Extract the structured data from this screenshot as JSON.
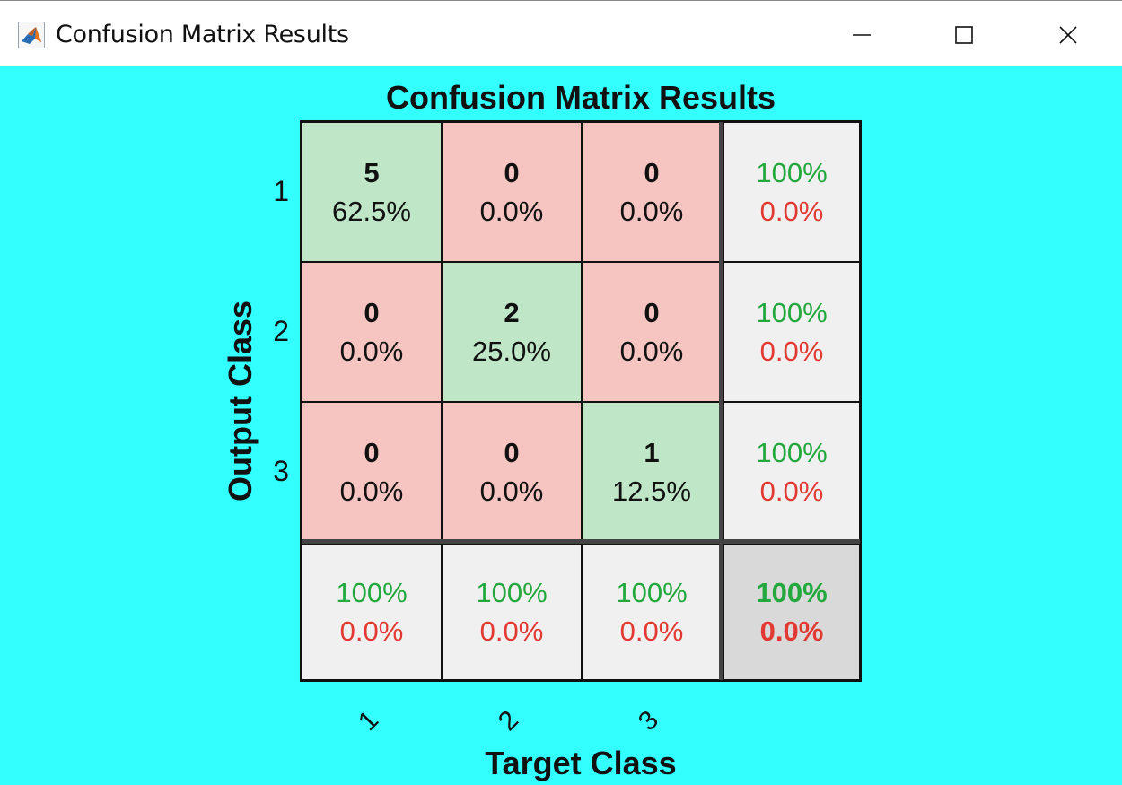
{
  "window": {
    "title": "Confusion Matrix Results",
    "icon": "matlab-icon",
    "controls": [
      "minimize-icon",
      "maximize-icon",
      "close-icon"
    ]
  },
  "figure": {
    "background": "#33ffff",
    "title": "Confusion Matrix Results",
    "ylabel": "Output Class",
    "xlabel": "Target Class",
    "yticks": [
      "1",
      "2",
      "3"
    ],
    "xticks": [
      "1",
      "2",
      "3"
    ]
  },
  "colors": {
    "correct_cell": "#bfe6c7",
    "incorrect_cell": "#f7c5c1",
    "summary_cell": "#f0f0f0",
    "total_cell": "#d9d9d9",
    "good_text": "#22a83c",
    "bad_text": "#e23a32"
  },
  "matrix": {
    "r0c0": {
      "count": "5",
      "pct": "62.5%"
    },
    "r0c1": {
      "count": "0",
      "pct": "0.0%"
    },
    "r0c2": {
      "count": "0",
      "pct": "0.0%"
    },
    "r1c0": {
      "count": "0",
      "pct": "0.0%"
    },
    "r1c1": {
      "count": "2",
      "pct": "25.0%"
    },
    "r1c2": {
      "count": "0",
      "pct": "0.0%"
    },
    "r2c0": {
      "count": "0",
      "pct": "0.0%"
    },
    "r2c1": {
      "count": "0",
      "pct": "0.0%"
    },
    "r2c2": {
      "count": "1",
      "pct": "12.5%"
    },
    "row_summary": [
      {
        "good": "100%",
        "bad": "0.0%"
      },
      {
        "good": "100%",
        "bad": "0.0%"
      },
      {
        "good": "100%",
        "bad": "0.0%"
      }
    ],
    "col_summary": [
      {
        "good": "100%",
        "bad": "0.0%"
      },
      {
        "good": "100%",
        "bad": "0.0%"
      },
      {
        "good": "100%",
        "bad": "0.0%"
      }
    ],
    "total": {
      "good": "100%",
      "bad": "0.0%"
    }
  },
  "chart_data": {
    "type": "heatmap",
    "title": "Confusion Matrix Results",
    "xlabel": "Target Class",
    "ylabel": "Output Class",
    "x_categories": [
      "1",
      "2",
      "3"
    ],
    "y_categories": [
      "1",
      "2",
      "3"
    ],
    "counts": [
      [
        5,
        0,
        0
      ],
      [
        0,
        2,
        0
      ],
      [
        0,
        0,
        1
      ]
    ],
    "percentages": [
      [
        62.5,
        0.0,
        0.0
      ],
      [
        0.0,
        25.0,
        0.0
      ],
      [
        0.0,
        0.0,
        12.5
      ]
    ],
    "row_accuracy": [
      100,
      100,
      100
    ],
    "row_error": [
      0.0,
      0.0,
      0.0
    ],
    "col_accuracy": [
      100,
      100,
      100
    ],
    "col_error": [
      0.0,
      0.0,
      0.0
    ],
    "overall_accuracy": 100,
    "overall_error": 0.0
  }
}
